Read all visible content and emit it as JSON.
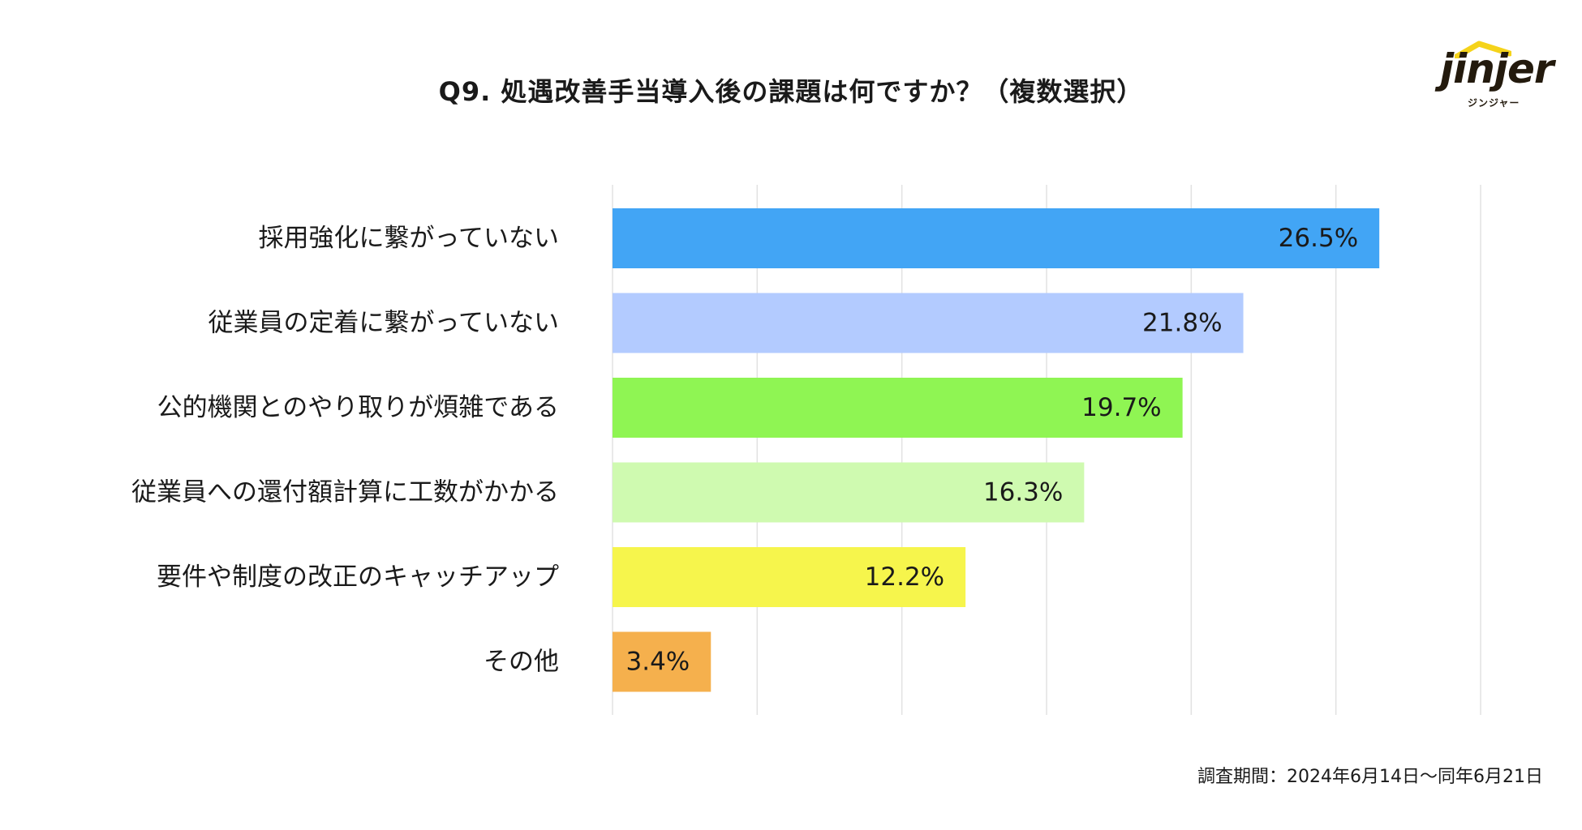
{
  "chart_data": {
    "type": "bar",
    "orientation": "horizontal",
    "title": "Q9.  処遇改善手当導入後の課題は何ですか？（複数選択）",
    "categories": [
      "採用強化に繋がっていない",
      "従業員の定着に繋がっていない",
      "公的機関とのやり取りが煩雑である",
      "従業員への還付額計算に工数がかかる",
      "要件や制度の改正のキャッチアップ",
      "その他"
    ],
    "values": [
      26.5,
      21.8,
      19.7,
      16.3,
      12.2,
      3.4
    ],
    "labels": [
      "26.5%",
      "21.8%",
      "19.7%",
      "16.3%",
      "12.2%",
      "3.4%"
    ],
    "colors": [
      "#42a5f5",
      "#b3cbff",
      "#8ff553",
      "#cffab0",
      "#f6f54c",
      "#f5b04d"
    ],
    "xlim": [
      0,
      30
    ],
    "grid": true,
    "xlabel": "",
    "ylabel": ""
  },
  "footnote": "調査期間：2024年6月14日〜同年6月21日",
  "logo": {
    "word": "jinjer",
    "sub": "ジンジャー",
    "roof_color": "#f5d31a"
  }
}
